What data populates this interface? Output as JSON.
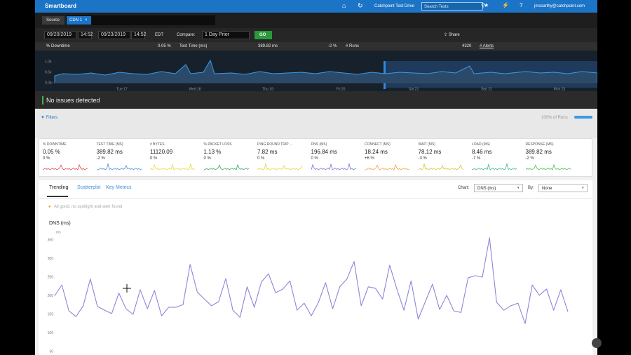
{
  "header": {
    "title": "Smartboard",
    "account": "Catchpoint Test Drive",
    "search_placeholder": "Search Tests",
    "user": "jmccarthy@catchpoint.com"
  },
  "source": {
    "label": "Source",
    "tag": "CDN 1"
  },
  "date_bar": {
    "start_date": "09/20/2019",
    "start_time": "14:52",
    "end_date": "09/23/2019",
    "end_time": "14:52",
    "timezone": "EDT",
    "compare_label": "Compare:",
    "compare_value": "1 Day Prior",
    "go": "GO",
    "share": "Share"
  },
  "summary": {
    "downtime_label": "% Downtime",
    "downtime_value": "0.05 %",
    "test_time_label": "Test Time (ms)",
    "test_time_value": "389.82 ms",
    "test_time_change": "-2 %",
    "runs_label": "# Runs",
    "runs_value": "4320",
    "alerts_label": "# Alerts"
  },
  "overview": {
    "ytick_labels": [
      "1.0k",
      "0.5k",
      "0.0k"
    ],
    "xtick_labels": [
      "Tue 17",
      "Wed 18",
      "Thu 19",
      "Fri 20",
      "Sat 21",
      "Sep 22",
      "Mon 23"
    ]
  },
  "status": "No issues detected",
  "filters": {
    "label": "Filters",
    "runs": "100% of Runs"
  },
  "metrics": [
    {
      "label": "% DOWNTIME",
      "value": "0.05 %",
      "change": "0 %",
      "color": "#e0474c"
    },
    {
      "label": "TEST TIME (MS)",
      "value": "389.82 ms",
      "change": "-2 %",
      "color": "#4a8fd8"
    },
    {
      "label": "# BYTES",
      "value": "11120.09",
      "change": "0 %",
      "color": "#e8d84a"
    },
    {
      "label": "% PACKET LOSS",
      "value": "1.13 %",
      "change": "0 %",
      "color": "#3aa66b"
    },
    {
      "label": "PING ROUND TRIP ...",
      "value": "7.82 ms",
      "change": "0 %",
      "color": "#e6d43c"
    },
    {
      "label": "DNS (MS)",
      "value": "196.84 ms",
      "change": "0 %",
      "color": "#7b74d6"
    },
    {
      "label": "CONNECT (MS)",
      "value": "18.24 ms",
      "change": "+6 %",
      "color": "#f0a040"
    },
    {
      "label": "WAIT (MS)",
      "value": "78.12 ms",
      "change": "-3 %",
      "color": "#c9c93a"
    },
    {
      "label": "LOAD (MS)",
      "value": "8.46 ms",
      "change": "-7 %",
      "color": "#3bb39a"
    },
    {
      "label": "RESPONSE (MS)",
      "value": "389.82 ms",
      "change": "-2 %",
      "color": "#4cc04c"
    }
  ],
  "tabs": [
    "Trending",
    "Scatterplot",
    "Key Metrics"
  ],
  "chart_controls": {
    "chart_label": "Chart:",
    "chart_value": "DNS (ms)",
    "by_label": "By:",
    "by_value": "None"
  },
  "notice": "All good, no spotlight and alert found",
  "chart_data": {
    "type": "line",
    "title": "DNS (ms)",
    "y_unit": "ms",
    "color": "#8b86d9",
    "ylim": [
      50,
      350
    ],
    "yticks": [
      50,
      100,
      150,
      200,
      250,
      300,
      350
    ],
    "values": [
      200,
      229,
      159,
      144,
      173,
      245,
      171,
      161,
      152,
      207,
      165,
      150,
      216,
      165,
      214,
      146,
      169,
      169,
      176,
      284,
      210,
      191,
      173,
      184,
      246,
      161,
      142,
      224,
      169,
      237,
      259,
      208,
      218,
      240,
      161,
      180,
      146,
      182,
      235,
      165,
      224,
      245,
      292,
      173,
      224,
      220,
      191,
      282,
      218,
      161,
      240,
      137,
      184,
      231,
      163,
      201,
      159,
      155,
      248,
      254,
      250,
      356,
      182,
      161,
      173,
      180,
      125,
      229,
      201,
      218,
      161,
      216,
      157
    ]
  }
}
